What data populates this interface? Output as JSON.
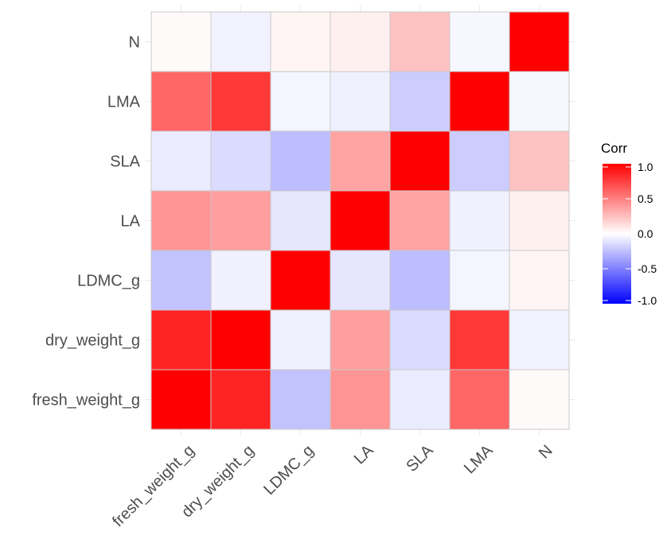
{
  "chart_data": {
    "type": "heatmap",
    "title": "",
    "xlabel": "",
    "ylabel": "",
    "x_labels": [
      "fresh_weight_g",
      "dry_weight_g",
      "LDMC_g",
      "LA",
      "SLA",
      "LMA",
      "N"
    ],
    "y_labels": [
      "fresh_weight_g",
      "dry_weight_g",
      "LDMC_g",
      "LA",
      "SLA",
      "LMA",
      "N"
    ],
    "matrix": [
      [
        1.0,
        0.86,
        -0.24,
        0.42,
        -0.08,
        0.6,
        0.02
      ],
      [
        0.86,
        1.0,
        -0.06,
        0.38,
        -0.14,
        0.78,
        -0.05
      ],
      [
        -0.24,
        -0.06,
        1.0,
        -0.1,
        -0.26,
        -0.04,
        0.04
      ],
      [
        0.42,
        0.38,
        -0.1,
        1.0,
        0.36,
        -0.06,
        0.06
      ],
      [
        -0.08,
        -0.14,
        -0.26,
        0.36,
        1.0,
        -0.2,
        0.24
      ],
      [
        0.6,
        0.78,
        -0.04,
        -0.06,
        -0.2,
        1.0,
        -0.03
      ],
      [
        0.02,
        -0.05,
        0.04,
        0.06,
        0.24,
        -0.03,
        1.0
      ]
    ],
    "legend": {
      "title": "Corr",
      "ticks": [
        "1.0",
        "0.5",
        "0.0",
        "-0.5",
        "-1.0"
      ],
      "tick_values": [
        1.0,
        0.5,
        0.0,
        -0.5,
        -1.0
      ],
      "placement": "right"
    },
    "colors": {
      "low": "#0000ff",
      "mid": "#ffffff",
      "high": "#ff0000",
      "border": "#c8c8c8"
    },
    "grid": true
  }
}
